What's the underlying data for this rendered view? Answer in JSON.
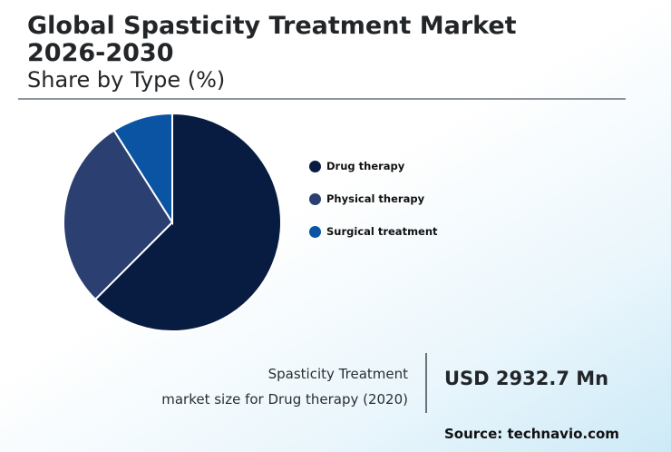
{
  "header": {
    "title_line1": "Global Spasticity Treatment Market",
    "title_line2": "2026-2030",
    "subtitle": "Share by Type (%)"
  },
  "chart_data": {
    "type": "pie",
    "categories": [
      "Drug therapy",
      "Physical therapy",
      "Surgical treatment"
    ],
    "values": [
      62.5,
      28.5,
      9.0
    ],
    "colors": [
      "#081c42",
      "#2b3f70",
      "#0b54a4"
    ],
    "legend_position": "right"
  },
  "highlight": {
    "label_line1": "Spasticity Treatment",
    "label_line2": "market size for Drug therapy (2020)",
    "value": "USD 2932.7 Mn"
  },
  "source": "Source: technavio.com"
}
